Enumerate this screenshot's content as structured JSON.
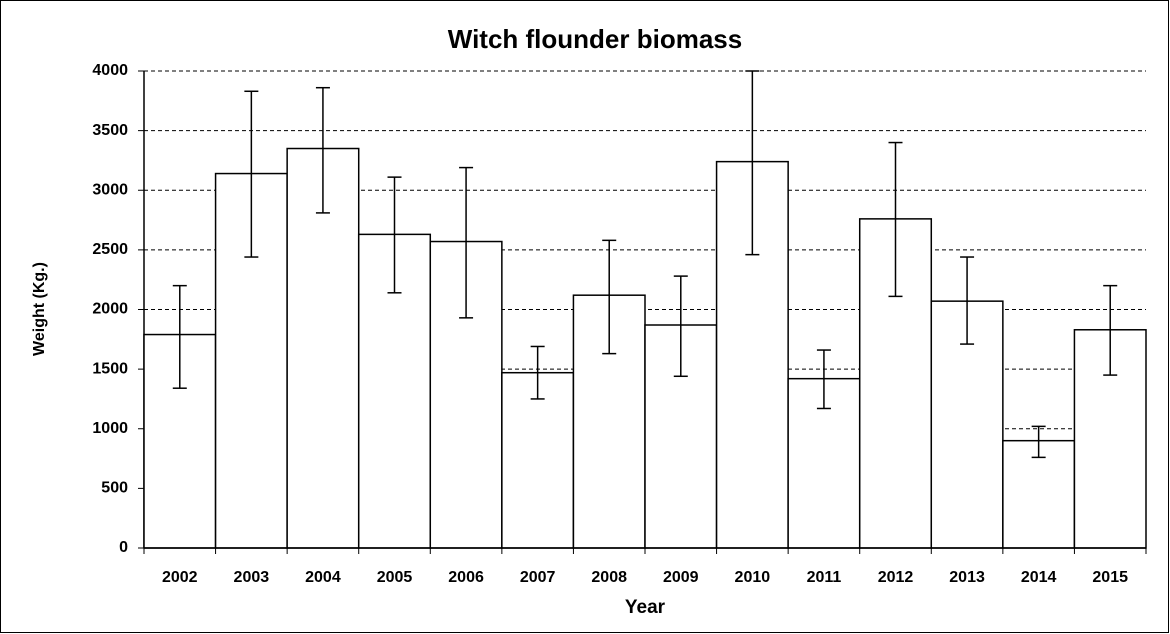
{
  "chart_data": {
    "type": "bar",
    "title": "Witch flounder biomass",
    "x_label": "Year",
    "y_label": "Weight (Kg.)",
    "categories": [
      "2002",
      "2003",
      "2004",
      "2005",
      "2006",
      "2007",
      "2008",
      "2009",
      "2010",
      "2011",
      "2012",
      "2013",
      "2014",
      "2015"
    ],
    "values": [
      1790,
      3140,
      3350,
      2630,
      2570,
      1470,
      2120,
      1870,
      3240,
      1420,
      2760,
      2070,
      900,
      1830
    ],
    "lower": [
      1340,
      2440,
      2810,
      2140,
      1930,
      1250,
      1630,
      1440,
      2460,
      1170,
      2110,
      1710,
      760,
      1450
    ],
    "upper": [
      2200,
      3830,
      3860,
      3110,
      3190,
      1690,
      2580,
      2280,
      4000,
      1660,
      3400,
      2440,
      1020,
      2200
    ],
    "color": "#ffffff",
    "ylim": [
      0,
      4000
    ],
    "yticks": [
      0,
      500,
      1000,
      1500,
      2000,
      2500,
      3000,
      3500,
      4000
    ],
    "grid": true
  }
}
